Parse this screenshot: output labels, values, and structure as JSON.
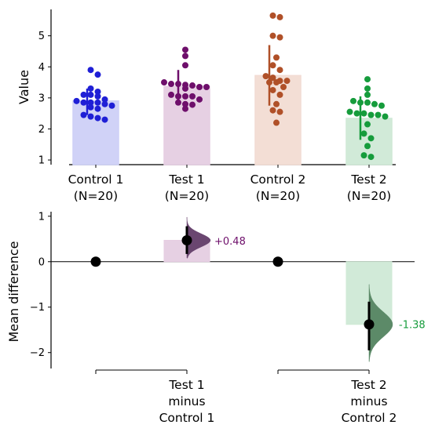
{
  "chart_data": [
    {
      "type": "bar",
      "ylabel": "Value",
      "ylim": [
        0.85,
        5.85
      ],
      "yticks": [
        1,
        2,
        3,
        4,
        5
      ],
      "categories": [
        "Control 1\n(N=20)",
        "Test 1\n(N=20)",
        "Control 2\n(N=20)",
        "Test 2\n(N=20)"
      ],
      "series": [
        {
          "category": "Control 1\n(N=20)",
          "color": "#1f1fd6",
          "fill": "#cdd0f7",
          "mean": 2.9,
          "ci": [
            2.45,
            3.3
          ],
          "points": [
            3.9,
            3.75,
            3.3,
            3.2,
            3.1,
            3.1,
            3.05,
            2.95,
            2.9,
            2.85,
            2.85,
            2.85,
            2.8,
            2.75,
            2.7,
            2.65,
            2.45,
            2.4,
            2.35,
            2.3
          ]
        },
        {
          "category": "Test 1\n(N=20)",
          "color": "#6e0f6b",
          "fill": "#e5cde2",
          "mean": 3.37,
          "ci": [
            2.85,
            3.9
          ],
          "points": [
            4.55,
            4.35,
            4.05,
            3.5,
            3.45,
            3.45,
            3.42,
            3.4,
            3.35,
            3.35,
            3.3,
            3.1,
            3.05,
            3.05,
            3.05,
            2.95,
            2.85,
            2.8,
            2.78,
            2.65
          ]
        },
        {
          "category": "Control 2\n(N=20)",
          "color": "#b05028",
          "fill": "#f2dcd3",
          "mean": 3.72,
          "ci": [
            2.75,
            4.7
          ],
          "points": [
            5.65,
            5.6,
            5.0,
            4.95,
            4.3,
            4.05,
            3.9,
            3.7,
            3.65,
            3.55,
            3.55,
            3.5,
            3.5,
            3.35,
            3.25,
            3.1,
            2.8,
            2.6,
            2.55,
            2.2
          ]
        },
        {
          "category": "Test 2\n(N=20)",
          "color": "#169c3c",
          "fill": "#cfe9d6",
          "mean": 2.34,
          "ci": [
            1.65,
            3.05
          ],
          "points": [
            3.6,
            3.3,
            3.1,
            2.9,
            2.85,
            2.85,
            2.8,
            2.75,
            2.55,
            2.5,
            2.5,
            2.45,
            2.45,
            2.4,
            2.15,
            1.85,
            1.7,
            1.45,
            1.15,
            1.1
          ]
        }
      ]
    },
    {
      "type": "scatter",
      "ylabel": "Mean difference",
      "ylim": [
        -2.35,
        1.1
      ],
      "yticks": [
        1,
        0,
        -1,
        -2
      ],
      "comparisons": [
        {
          "label": "Test 2\nminus\nControl 2",
          "control_index": 2,
          "test_index": 3,
          "difference": -1.38,
          "difference_text": "-1.38",
          "ci": [
            -1.95,
            -0.88
          ],
          "dist_range": [
            -2.2,
            -0.5
          ],
          "color": "#169c3c",
          "fill": "#cfe9d6",
          "density_color": "#5c8a68"
        }
      ]
    }
  ],
  "first_comparison": {
    "label_lines": [
      "Test 1",
      "minus",
      "Control 1"
    ],
    "difference_text": "+0.48"
  },
  "second_comparison_label_lines": [
    "Test 2",
    "minus",
    "Control 2"
  ]
}
